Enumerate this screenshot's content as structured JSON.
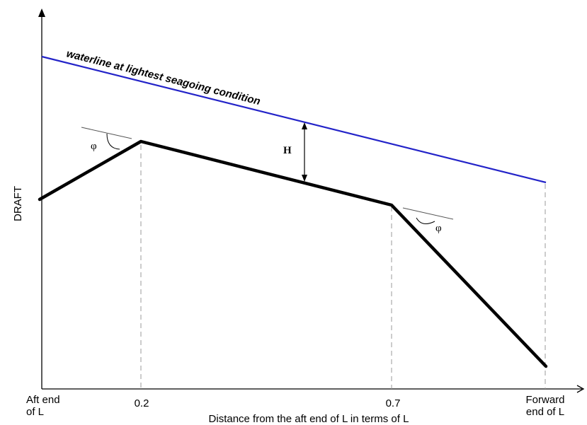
{
  "waterline": {
    "label": "waterline at lightest seagoing condition",
    "color": "#2323c8"
  },
  "y_axis": {
    "label": "DRAFT"
  },
  "x_axis": {
    "label": "Distance from the aft end of L in terms of L",
    "ticks": [
      {
        "line1": "Aft end",
        "line2": "of L"
      },
      {
        "line1": "0.2",
        "line2": ""
      },
      {
        "line1": "0.7",
        "line2": ""
      },
      {
        "line1": "Forward",
        "line2": "end of L"
      }
    ]
  },
  "clearance": {
    "label": "H"
  },
  "angles": {
    "aft_label": "φ",
    "forward_label": "φ"
  },
  "colors": {
    "profile": "#000000",
    "guides": "#999999",
    "axes": "#000000"
  }
}
